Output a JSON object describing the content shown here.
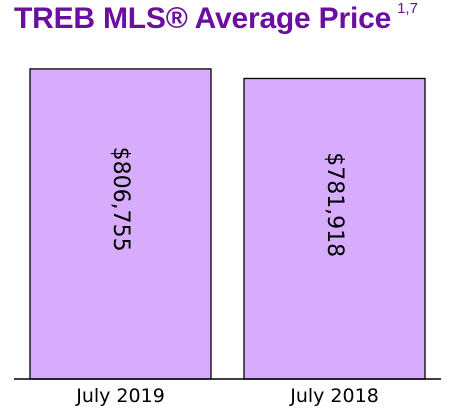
{
  "title": "TREB MLS® Average Price",
  "title_superscript": "1,7",
  "colors": {
    "title": "#6b0fa0",
    "bar_fill": "#d7acfc",
    "bar_stroke": "#000000"
  },
  "chart_data": {
    "type": "bar",
    "title": "TREB MLS® Average Price",
    "categories": [
      "July 2019",
      "July 2018"
    ],
    "values": [
      806755,
      781918
    ],
    "data_labels": [
      "$806,755",
      "$781,918"
    ],
    "data_label_orientation": "rotated-90-clockwise",
    "xlabel": "",
    "ylabel": "",
    "ylim": [
      0,
      830000
    ],
    "grid": false,
    "legend": "none"
  }
}
